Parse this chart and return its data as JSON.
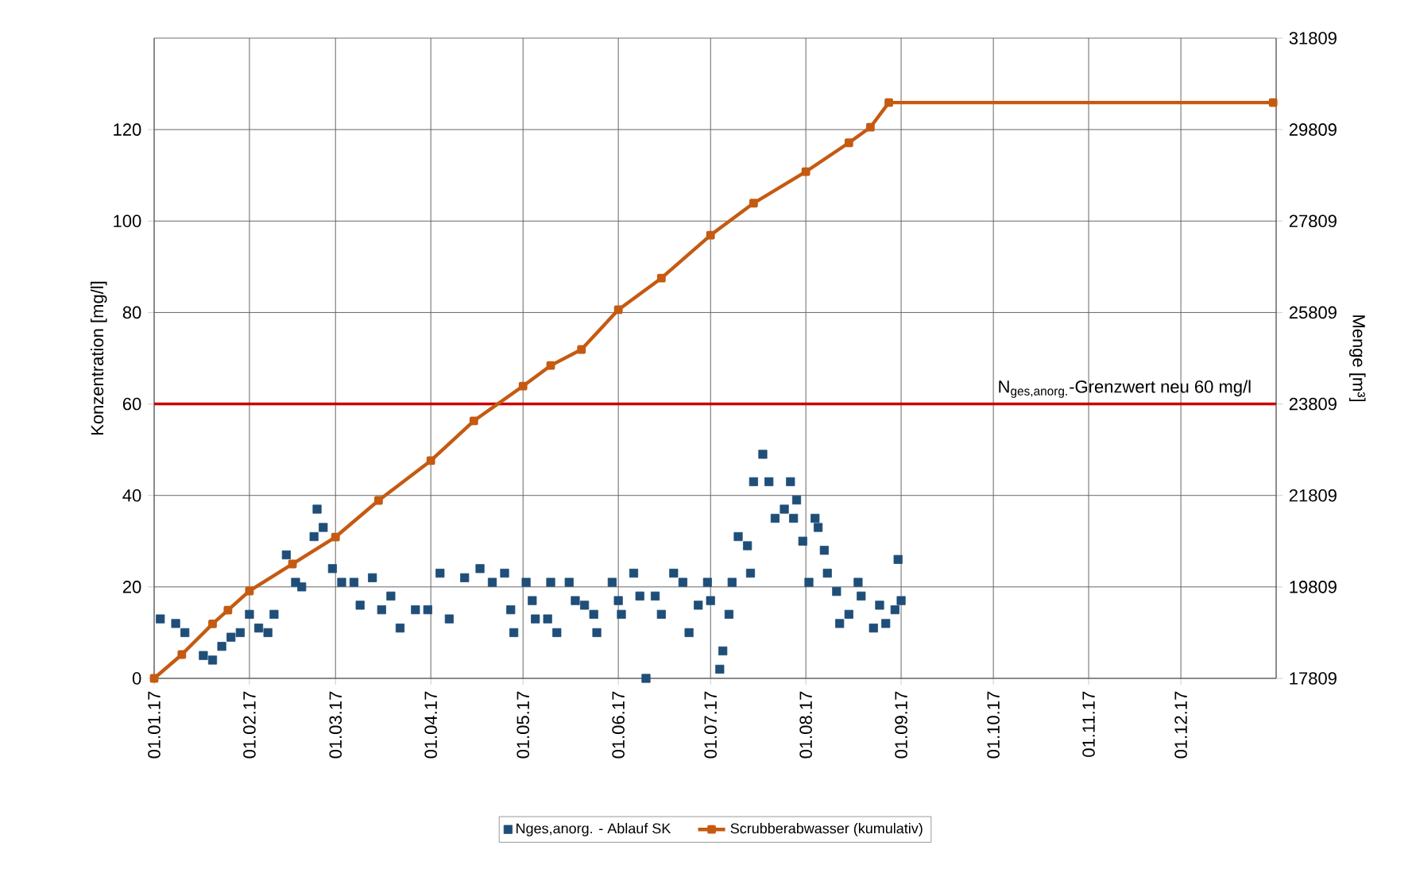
{
  "chart_data": {
    "type": "scatter",
    "ylabel": "Konzentration [mg/l]",
    "y2label": "Menge [m³]",
    "xlim": [
      "2017-01-01",
      "2018-01-01"
    ],
    "xticks": [
      {
        "value": "2017-01-01",
        "label": "01.01.17"
      },
      {
        "value": "2017-02-01",
        "label": "01.02.17"
      },
      {
        "value": "2017-03-01",
        "label": "01.03.17"
      },
      {
        "value": "2017-04-01",
        "label": "01.04.17"
      },
      {
        "value": "2017-05-01",
        "label": "01.05.17"
      },
      {
        "value": "2017-06-01",
        "label": "01.06.17"
      },
      {
        "value": "2017-07-01",
        "label": "01.07.17"
      },
      {
        "value": "2017-08-01",
        "label": "01.08.17"
      },
      {
        "value": "2017-09-01",
        "label": "01.09.17"
      },
      {
        "value": "2017-10-01",
        "label": "01.10.17"
      },
      {
        "value": "2017-11-01",
        "label": "01.11.17"
      },
      {
        "value": "2017-12-01",
        "label": "01.12.17"
      }
    ],
    "ylim": [
      0,
      140
    ],
    "yticks": [
      0,
      20,
      40,
      60,
      80,
      100,
      120
    ],
    "y2lim": [
      17809,
      31809
    ],
    "y2ticks": [
      17809,
      19809,
      21809,
      23809,
      25809,
      27809,
      29809,
      31809
    ],
    "grid": true,
    "legend": "bottom",
    "ref_lines": [
      {
        "axis": "y",
        "value": 60,
        "label": "N$_{ges,anorg.}$-Grenzwert neu  60 mg/l",
        "color": "#cc0000"
      }
    ],
    "series": [
      {
        "name": "Nges,anorg. - Ablauf SK",
        "marker": "square",
        "color": "#1f4e79",
        "x": [
          "2017-01-03",
          "2017-01-08",
          "2017-01-11",
          "2017-01-17",
          "2017-01-20",
          "2017-01-23",
          "2017-01-26",
          "2017-01-29",
          "2017-02-01",
          "2017-02-04",
          "2017-02-07",
          "2017-02-09",
          "2017-02-13",
          "2017-02-16",
          "2017-02-18",
          "2017-02-22",
          "2017-02-23",
          "2017-02-25",
          "2017-02-28",
          "2017-03-03",
          "2017-03-07",
          "2017-03-09",
          "2017-03-13",
          "2017-03-16",
          "2017-03-19",
          "2017-03-22",
          "2017-03-27",
          "2017-03-31",
          "2017-04-04",
          "2017-04-07",
          "2017-04-12",
          "2017-04-17",
          "2017-04-21",
          "2017-04-25",
          "2017-04-27",
          "2017-04-28",
          "2017-05-02",
          "2017-05-04",
          "2017-05-05",
          "2017-05-09",
          "2017-05-10",
          "2017-05-12",
          "2017-05-16",
          "2017-05-18",
          "2017-05-21",
          "2017-05-24",
          "2017-05-25",
          "2017-05-30",
          "2017-06-01",
          "2017-06-02",
          "2017-06-06",
          "2017-06-08",
          "2017-06-10",
          "2017-06-13",
          "2017-06-15",
          "2017-06-19",
          "2017-06-22",
          "2017-06-24",
          "2017-06-27",
          "2017-06-30",
          "2017-07-01",
          "2017-07-04",
          "2017-07-05",
          "2017-07-07",
          "2017-07-08",
          "2017-07-10",
          "2017-07-13",
          "2017-07-14",
          "2017-07-15",
          "2017-07-18",
          "2017-07-20",
          "2017-07-22",
          "2017-07-25",
          "2017-07-27",
          "2017-07-28",
          "2017-07-29",
          "2017-07-31",
          "2017-08-02",
          "2017-08-04",
          "2017-08-05",
          "2017-08-07",
          "2017-08-08",
          "2017-08-11",
          "2017-08-12",
          "2017-08-15",
          "2017-08-18",
          "2017-08-19",
          "2017-08-23",
          "2017-08-25",
          "2017-08-27",
          "2017-08-30",
          "2017-08-31",
          "2017-09-01"
        ],
        "values": [
          13,
          12,
          10,
          5,
          4,
          7,
          9,
          10,
          14,
          11,
          10,
          14,
          27,
          21,
          20,
          31,
          37,
          33,
          24,
          21,
          21,
          16,
          22,
          15,
          18,
          11,
          15,
          15,
          23,
          13,
          22,
          24,
          21,
          23,
          15,
          10,
          21,
          17,
          13,
          13,
          21,
          10,
          21,
          17,
          16,
          14,
          10,
          21,
          17,
          14,
          23,
          18,
          0,
          18,
          14,
          23,
          21,
          10,
          16,
          21,
          17,
          2,
          6,
          14,
          21,
          31,
          29,
          23,
          43,
          49,
          43,
          35,
          37,
          43,
          35,
          39,
          30,
          21,
          35,
          33,
          28,
          23,
          19,
          12,
          14,
          21,
          18,
          11,
          16,
          12,
          15,
          26,
          17
        ]
      },
      {
        "name": "Scrubberabwasser (kumulativ)",
        "type": "line",
        "axis": "y2",
        "marker": "square",
        "color": "#c55a11",
        "x": [
          "2017-01-01",
          "2017-01-10",
          "2017-01-20",
          "2017-01-25",
          "2017-02-01",
          "2017-02-15",
          "2017-03-01",
          "2017-03-15",
          "2017-04-01",
          "2017-04-15",
          "2017-05-01",
          "2017-05-10",
          "2017-05-20",
          "2017-06-01",
          "2017-06-15",
          "2017-07-01",
          "2017-07-15",
          "2017-08-01",
          "2017-08-15",
          "2017-08-22",
          "2017-08-28",
          "2017-12-31"
        ],
        "values": [
          17809,
          18330,
          19000,
          19300,
          19720,
          20310,
          20900,
          21700,
          22570,
          23440,
          24200,
          24650,
          25000,
          25870,
          26560,
          27500,
          28200,
          28890,
          29520,
          29860,
          30400,
          30400
        ]
      }
    ]
  }
}
